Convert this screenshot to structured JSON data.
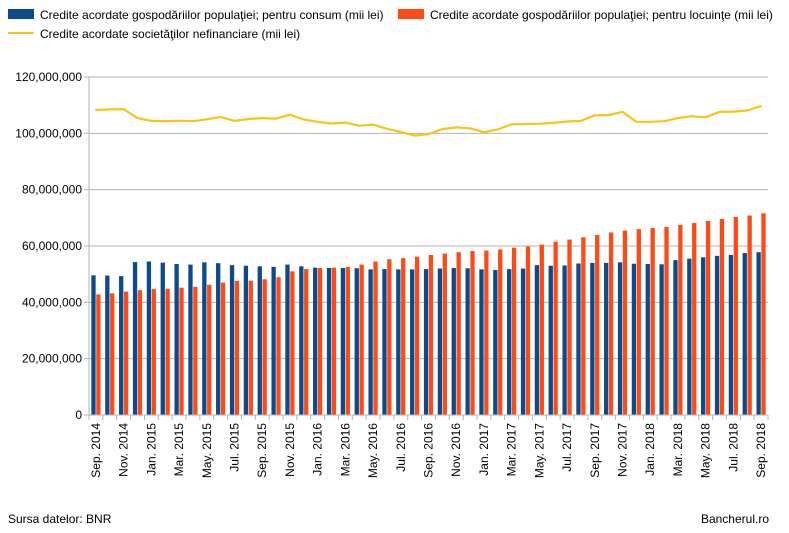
{
  "chart_data": {
    "type": "bar",
    "legend": {
      "placement": "top",
      "entries": [
        {
          "name": "Credite acordate gospodăriilor populaţiei; pentru consum (mii lei)",
          "color": "#0b4a8c"
        },
        {
          "name": "Credite acordate gospodăriilor populaţiei; pentru locuinţe (mii lei)",
          "color": "#fd4b17"
        },
        {
          "name": "Credite acordate societăţilor nefinanciare (mii lei)",
          "color": "#f5c518"
        }
      ]
    },
    "x": [
      "Sep. 2014",
      "Oct. 2014",
      "Nov. 2014",
      "Dec. 2014",
      "Jan. 2015",
      "Feb. 2015",
      "Mar. 2015",
      "Apr. 2015",
      "May. 2015",
      "Jun. 2015",
      "Jul. 2015",
      "Aug. 2015",
      "Sep. 2015",
      "Oct. 2015",
      "Nov. 2015",
      "Dec. 2015",
      "Jan. 2016",
      "Feb. 2016",
      "Mar. 2016",
      "Apr. 2016",
      "May. 2016",
      "Jun. 2016",
      "Jul. 2016",
      "Aug. 2016",
      "Sep. 2016",
      "Oct. 2016",
      "Nov. 2016",
      "Dec. 2016",
      "Jan. 2017",
      "Feb. 2017",
      "Mar. 2017",
      "Apr. 2017",
      "May. 2017",
      "Jun. 2017",
      "Jul. 2017",
      "Aug. 2017",
      "Sep. 2017",
      "Oct. 2017",
      "Nov. 2017",
      "Dec. 2017",
      "Jan. 2018",
      "Feb. 2018",
      "Mar. 2018",
      "Apr. 2018",
      "May. 2018",
      "Jun. 2018",
      "Jul. 2018",
      "Aug. 2018",
      "Sep. 2018"
    ],
    "tick_labels": [
      "Sep. 2014",
      "Nov. 2014",
      "Jan. 2015",
      "Mar. 2015",
      "May. 2015",
      "Jul. 2015",
      "Sep. 2015",
      "Nov. 2015",
      "Jan. 2016",
      "Mar. 2016",
      "May. 2016",
      "Jul. 2016",
      "Sep. 2016",
      "Nov. 2016",
      "Jan. 2017",
      "Mar. 2017",
      "May. 2017",
      "Jul. 2017",
      "Sep. 2017",
      "Nov. 2017",
      "Jan. 2018",
      "Mar. 2018",
      "May. 2018",
      "Jul. 2018",
      "Sep. 2018"
    ],
    "series": [
      {
        "name": "Credite acordate gospodăriilor populaţiei; pentru consum (mii lei)",
        "type": "bar",
        "values": [
          49600000,
          49500000,
          49300000,
          54300000,
          54500000,
          54100000,
          53600000,
          53400000,
          54200000,
          53900000,
          53200000,
          53000000,
          52800000,
          52600000,
          53400000,
          52800000,
          52300000,
          52200000,
          52200000,
          52100000,
          51700000,
          51800000,
          51700000,
          51700000,
          51800000,
          52000000,
          52200000,
          52100000,
          51700000,
          51500000,
          51800000,
          52000000,
          53200000,
          53000000,
          53100000,
          53800000,
          54000000,
          54000000,
          54200000,
          53700000,
          53600000,
          53500000,
          55000000,
          55500000,
          56000000,
          56500000,
          56800000,
          57500000,
          57800000
        ]
      },
      {
        "name": "Credite acordate gospodăriilor populaţiei; pentru locuinţe (mii lei)",
        "type": "bar",
        "values": [
          42800000,
          43200000,
          43800000,
          44300000,
          44700000,
          44800000,
          45200000,
          45500000,
          46200000,
          47000000,
          47600000,
          47700000,
          48200000,
          48900000,
          51000000,
          51800000,
          52200000,
          52300000,
          52600000,
          53400000,
          54500000,
          55300000,
          55700000,
          56200000,
          56800000,
          57300000,
          57800000,
          58200000,
          58400000,
          58800000,
          59400000,
          59800000,
          60500000,
          61500000,
          62300000,
          63100000,
          63900000,
          64800000,
          65500000,
          66000000,
          66400000,
          66800000,
          67500000,
          68200000,
          68900000,
          69600000,
          70300000,
          70800000,
          71600000
        ]
      },
      {
        "name": "Credite acordate societăţilor nefinanciare (mii lei)",
        "type": "line",
        "values": [
          108300000,
          108500000,
          108600000,
          105400000,
          104400000,
          104300000,
          104500000,
          104300000,
          105000000,
          105800000,
          104400000,
          105100000,
          105400000,
          105200000,
          106600000,
          104900000,
          104100000,
          103500000,
          103800000,
          102700000,
          103100000,
          101600000,
          100500000,
          99200000,
          99700000,
          101500000,
          102100000,
          101800000,
          100400000,
          101400000,
          103200000,
          103300000,
          103400000,
          103700000,
          104200000,
          104400000,
          106400000,
          106500000,
          107600000,
          104100000,
          104100000,
          104300000,
          105400000,
          106100000,
          105700000,
          107600000,
          107700000,
          108100000,
          109700000
        ]
      }
    ],
    "ylim": [
      0,
      120000000
    ],
    "yticks": [
      0,
      20000000,
      40000000,
      60000000,
      80000000,
      100000000,
      120000000
    ],
    "ytick_labels": [
      "0",
      "20,000,000",
      "40,000,000",
      "60,000,000",
      "80,000,000",
      "100,000,000",
      "120,000,000"
    ],
    "grid": true
  },
  "footer": {
    "source": "Sursa datelor: BNR",
    "brand": "Bancherul.ro"
  }
}
